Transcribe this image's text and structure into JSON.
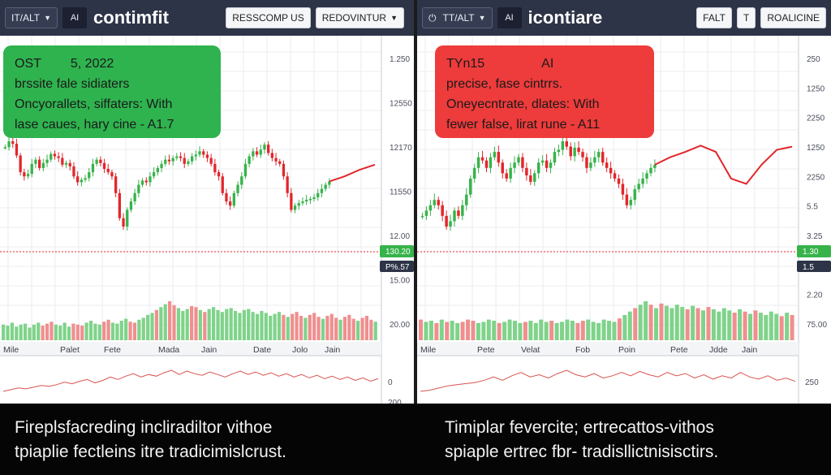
{
  "left": {
    "toolbar": {
      "symbol": "IT/ALT",
      "ai": "AI",
      "title": "contimfit",
      "button1": "RESSCOMP US",
      "button2": "REDOVINTUR"
    },
    "info": {
      "line1a": "OST",
      "line1b": "5, 2022",
      "line2": "brssite fale sidiaters",
      "line3": "Oncyorallets, siffaters:  With",
      "line4": "lase caues, hary cine  -  A1.7"
    },
    "colors": {
      "up": "#37b34a",
      "down": "#e2262b",
      "vol_up": "#7fd38a",
      "vol_down": "#ef8f8f",
      "box": "#2fb34f"
    },
    "chart_data": {
      "type": "candlestick",
      "y_ticks": [
        "1.250",
        "12550",
        "12170",
        "11550",
        "12.00",
        "15.00",
        "20.00"
      ],
      "price_tag": "130.20",
      "price_tag2": "P%.57",
      "x_labels": [
        "Mile",
        "Palet",
        "Fete",
        "Mada",
        "Jain",
        "Date",
        "Jolo",
        "Jain"
      ],
      "oscillator_labels": [
        "0",
        "200"
      ],
      "close": [
        75,
        82,
        79,
        65,
        45,
        40,
        43,
        55,
        60,
        50,
        56,
        60,
        67,
        64,
        62,
        54,
        56,
        52,
        40,
        33,
        36,
        38,
        45,
        55,
        60,
        56,
        49,
        45,
        40,
        20,
        -10,
        -20,
        0,
        10,
        20,
        30,
        35,
        33,
        40,
        45,
        50,
        55,
        60,
        58,
        62,
        64,
        62,
        55,
        58,
        64,
        66,
        70,
        66,
        62,
        55,
        45,
        40,
        20,
        10,
        5,
        20,
        30,
        40,
        55,
        64,
        70,
        66,
        72,
        78,
        68,
        62,
        58,
        55,
        40,
        20,
        0,
        5,
        8,
        10,
        12,
        13,
        15,
        20,
        25,
        30,
        34
      ],
      "volume": [
        16,
        15,
        18,
        14,
        16,
        17,
        13,
        16,
        18,
        15,
        17,
        19,
        16,
        15,
        18,
        14,
        17,
        16,
        15,
        18,
        20,
        17,
        16,
        19,
        21,
        18,
        17,
        20,
        22,
        19,
        18,
        21,
        23,
        26,
        28,
        31,
        34,
        37,
        40,
        36,
        33,
        30,
        32,
        35,
        34,
        31,
        29,
        32,
        34,
        31,
        29,
        32,
        33,
        30,
        28,
        31,
        32,
        29,
        27,
        30,
        28,
        25,
        27,
        29,
        26,
        24,
        27,
        29,
        25,
        23,
        26,
        28,
        24,
        22,
        25,
        27,
        23,
        21,
        24,
        26,
        22,
        20,
        23,
        25,
        21,
        19
      ],
      "oscillator": [
        0.1,
        0.3,
        0.5,
        0.4,
        0.6,
        0.8,
        0.7,
        0.9,
        1.2,
        1.0,
        1.3,
        1.5,
        1.1,
        1.4,
        1.8,
        1.5,
        1.9,
        2.2,
        1.8,
        2.1,
        1.9,
        2.3,
        2.6,
        2.1,
        2.5,
        2.2,
        2.0,
        2.4,
        2.1,
        1.8,
        2.2,
        2.5,
        2.1,
        2.4,
        2.0,
        2.3,
        1.9,
        2.2,
        1.8,
        2.1,
        1.7,
        2.0,
        1.6,
        1.9,
        1.5,
        1.8,
        1.4,
        1.7,
        1.3,
        1.6
      ]
    },
    "caption": {
      "line1": "Firepls­facreding incliradil­tor vithoe",
      "line2": "tpiaplie fectleins itre tradicimislcrust."
    }
  },
  "right": {
    "toolbar": {
      "symbol": "TT/ALT",
      "ai": "AI",
      "title": "icontiare",
      "button1": "FALT",
      "button2": "T",
      "button3": "ROALICINE"
    },
    "info": {
      "line1a": "TYn15",
      "line1b": "AI",
      "line2": "precise, fase cintrrs.",
      "line3": "Oneyecntrate, dlates:  With",
      "line4": "fewer false, lirat rune  -  A11"
    },
    "colors": {
      "up": "#37b34a",
      "down": "#e2262b",
      "vol_up": "#7fd38a",
      "vol_down": "#ef8f8f",
      "box": "#ee3b3b"
    },
    "chart_data": {
      "type": "candlestick",
      "y_ticks": [
        "250",
        "1250",
        "2250",
        "1250",
        "2250",
        "5.5",
        "3.25",
        "250",
        "2.20",
        "75.00"
      ],
      "price_tag": "1.30",
      "price_tag2": "1.5",
      "x_labels": [
        "Mile",
        "Pete",
        "Velat",
        "Fob",
        "Poin",
        "Pete",
        "Jdde",
        "Jain"
      ],
      "oscillator_labels": [
        "250"
      ],
      "close": [
        0,
        5,
        10,
        15,
        10,
        0,
        -10,
        -5,
        5,
        0,
        10,
        20,
        35,
        45,
        55,
        52,
        45,
        55,
        60,
        50,
        40,
        35,
        45,
        50,
        55,
        45,
        38,
        32,
        40,
        50,
        52,
        45,
        50,
        60,
        62,
        70,
        65,
        56,
        64,
        60,
        55,
        45,
        50,
        55,
        60,
        50,
        45,
        40,
        35,
        30,
        20,
        10,
        15,
        25,
        30,
        35,
        40,
        45,
        48
      ],
      "line_after": [
        48,
        55,
        60,
        66,
        60,
        35,
        30,
        48,
        62,
        65
      ],
      "volume": [
        18,
        16,
        17,
        15,
        18,
        16,
        17,
        15,
        16,
        18,
        17,
        15,
        16,
        18,
        17,
        15,
        16,
        18,
        17,
        15,
        16,
        17,
        15,
        18,
        16,
        17,
        15,
        16,
        18,
        17,
        15,
        17,
        18,
        16,
        15,
        18,
        17,
        16,
        19,
        22,
        25,
        28,
        31,
        34,
        31,
        28,
        32,
        30,
        28,
        31,
        29,
        27,
        30,
        28,
        26,
        29,
        27,
        25,
        28,
        26,
        24,
        27,
        25,
        23,
        26,
        24,
        22,
        25,
        23,
        21,
        24,
        22
      ],
      "oscillator": [
        0.5,
        0.6,
        0.8,
        1.0,
        1.1,
        1.2,
        1.3,
        1.5,
        1.8,
        1.5,
        1.9,
        2.2,
        1.8,
        2.0,
        1.7,
        2.1,
        2.4,
        2.0,
        1.8,
        2.1,
        1.7,
        1.9,
        2.2,
        1.9,
        2.3,
        2.0,
        1.8,
        2.2,
        1.9,
        2.1,
        1.7,
        2.0,
        1.6,
        1.9,
        1.7,
        2.2,
        1.8,
        1.6,
        1.9,
        1.5,
        1.7,
        1.4
      ]
    },
    "caption": {
      "line1": "Timiplar fevercite; ertrecattos-vithos",
      "line2": "spiaple ertrec fbr- tradisllictnisisctirs."
    }
  }
}
